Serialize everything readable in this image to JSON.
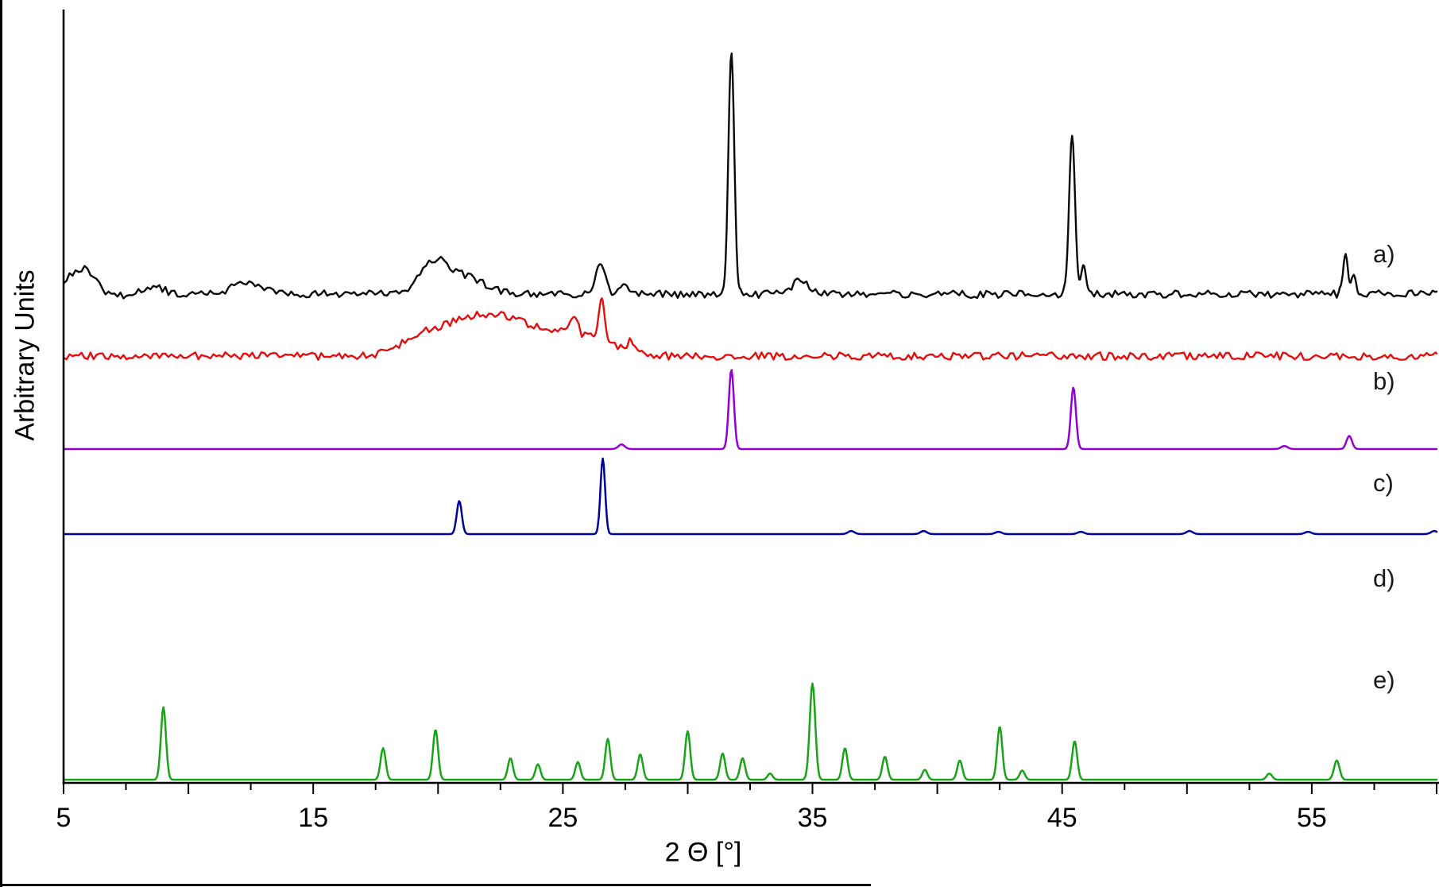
{
  "chart_data": {
    "type": "line",
    "title": "",
    "xlabel": "2 Θ [°]",
    "ylabel": "Arbitrary Units",
    "xlim": [
      5,
      60
    ],
    "x_major_ticks": [
      5,
      15,
      25,
      35,
      45,
      55
    ],
    "x_minor_step": 2.5,
    "grid": false,
    "background": "#ffffff",
    "axis_color": "#000000",
    "note": "Five stacked X-ray diffraction patterns labeled a)-e); peaks given as [two_theta_deg, height_fraction_of_plot, fwhm_deg]; baseline/label_y are fractions of plot height above the x-axis",
    "series": [
      {
        "id": "a",
        "label": "a)",
        "color": "#0a0a0a",
        "width": 2.4,
        "baseline": 0.634,
        "label_y": 0.675,
        "noise": 0.005,
        "humps": [
          [
            5.7,
            0.033,
            1.4
          ],
          [
            8.6,
            0.01,
            1.0
          ],
          [
            12.3,
            0.014,
            1.4
          ],
          [
            19.8,
            0.038,
            1.3
          ],
          [
            21.0,
            0.022,
            1.9
          ],
          [
            6.9,
            -0.006,
            0.8
          ]
        ],
        "peaks": [
          [
            26.5,
            0.04,
            0.45
          ],
          [
            27.4,
            0.012,
            0.4
          ],
          [
            31.75,
            0.311,
            0.28
          ],
          [
            34.5,
            0.02,
            0.7
          ],
          [
            45.4,
            0.204,
            0.28
          ],
          [
            45.85,
            0.035,
            0.22
          ],
          [
            56.35,
            0.054,
            0.24
          ],
          [
            56.7,
            0.025,
            0.2
          ]
        ]
      },
      {
        "id": "b",
        "label": "b)",
        "color": "#e60d0d",
        "width": 2.4,
        "baseline": 0.5536,
        "label_y": 0.51,
        "noise": 0.005,
        "humps": [
          [
            21.3,
            0.04,
            3.5
          ],
          [
            23.5,
            0.028,
            4.0
          ],
          [
            26.0,
            0.016,
            2.5
          ],
          [
            19.2,
            0.012,
            1.8
          ]
        ],
        "peaks": [
          [
            25.45,
            0.02,
            0.35
          ],
          [
            26.55,
            0.053,
            0.28
          ],
          [
            27.75,
            0.014,
            0.4
          ]
        ]
      },
      {
        "id": "c",
        "label": "c)",
        "color": "#9400D3",
        "width": 2.5,
        "baseline": 0.433,
        "label_y": 0.378,
        "noise": 0,
        "humps": [],
        "peaks": [
          [
            27.35,
            0.006,
            0.3
          ],
          [
            31.75,
            0.103,
            0.24
          ],
          [
            45.45,
            0.08,
            0.24
          ],
          [
            53.9,
            0.004,
            0.3
          ],
          [
            56.5,
            0.017,
            0.26
          ]
        ]
      },
      {
        "id": "d",
        "label": "d)",
        "color": "#00009B",
        "width": 2.5,
        "baseline": 0.3227,
        "label_y": 0.255,
        "noise": 0,
        "humps": [],
        "peaks": [
          [
            20.85,
            0.043,
            0.24
          ],
          [
            26.6,
            0.098,
            0.22
          ],
          [
            36.55,
            0.004,
            0.3
          ],
          [
            39.45,
            0.004,
            0.3
          ],
          [
            42.45,
            0.003,
            0.3
          ],
          [
            45.75,
            0.003,
            0.3
          ],
          [
            50.1,
            0.004,
            0.3
          ],
          [
            54.85,
            0.003,
            0.3
          ],
          [
            59.9,
            0.004,
            0.3
          ]
        ]
      },
      {
        "id": "e",
        "label": "e)",
        "color": "#17A517",
        "width": 2.5,
        "baseline": 0.0041,
        "label_y": 0.123,
        "noise": 0,
        "humps": [],
        "peaks": [
          [
            9.0,
            0.094,
            0.24
          ],
          [
            17.8,
            0.041,
            0.24
          ],
          [
            19.9,
            0.065,
            0.24
          ],
          [
            22.9,
            0.028,
            0.24
          ],
          [
            24.0,
            0.02,
            0.24
          ],
          [
            25.6,
            0.023,
            0.24
          ],
          [
            26.8,
            0.053,
            0.24
          ],
          [
            28.1,
            0.033,
            0.24
          ],
          [
            30.0,
            0.063,
            0.24
          ],
          [
            31.4,
            0.034,
            0.24
          ],
          [
            32.2,
            0.028,
            0.24
          ],
          [
            33.3,
            0.008,
            0.24
          ],
          [
            35.0,
            0.125,
            0.26
          ],
          [
            36.3,
            0.041,
            0.24
          ],
          [
            37.9,
            0.03,
            0.24
          ],
          [
            39.5,
            0.013,
            0.24
          ],
          [
            40.9,
            0.025,
            0.24
          ],
          [
            42.5,
            0.069,
            0.24
          ],
          [
            43.4,
            0.012,
            0.24
          ],
          [
            45.5,
            0.05,
            0.24
          ],
          [
            53.3,
            0.008,
            0.26
          ],
          [
            56.0,
            0.025,
            0.26
          ]
        ]
      }
    ]
  }
}
